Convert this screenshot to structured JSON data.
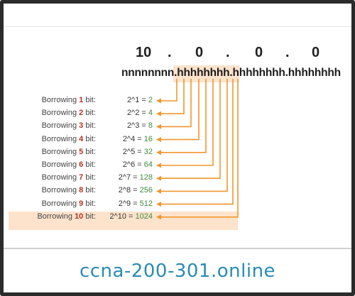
{
  "ip": {
    "octets": [
      "10",
      "0",
      "0",
      "0"
    ],
    "separator": "."
  },
  "bits": {
    "network": "nnnnnnnn",
    "dot": ".",
    "host_highlight": "hhhhhhhh.hh",
    "host_rest": "hhhhhh.hhhhhhhh"
  },
  "rows": [
    {
      "prefix": "Borrowing ",
      "n": "1",
      "suffix": " bit:",
      "expr": "2^1 = ",
      "result": "2"
    },
    {
      "prefix": "Borrowing ",
      "n": "2",
      "suffix": " bit:",
      "expr": "2^2 = ",
      "result": "4"
    },
    {
      "prefix": "Borrowing ",
      "n": "3",
      "suffix": " bit:",
      "expr": "2^3 = ",
      "result": "8"
    },
    {
      "prefix": "Borrowing ",
      "n": "4",
      "suffix": " bit:",
      "expr": "2^4 = ",
      "result": "16"
    },
    {
      "prefix": "Borrowing ",
      "n": "5",
      "suffix": " bit:",
      "expr": "2^5 = ",
      "result": "32"
    },
    {
      "prefix": "Borrowing ",
      "n": "6",
      "suffix": " bit:",
      "expr": "2^6 = ",
      "result": "64"
    },
    {
      "prefix": "Borrowing ",
      "n": "7",
      "suffix": " bit:",
      "expr": "2^7 = ",
      "result": "128"
    },
    {
      "prefix": "Borrowing ",
      "n": "8",
      "suffix": " bit:",
      "expr": "2^8 = ",
      "result": "256"
    },
    {
      "prefix": "Borrowing ",
      "n": "9",
      "suffix": " bit:",
      "expr": "2^9 = ",
      "result": "512"
    },
    {
      "prefix": "Borrowing ",
      "n": "10",
      "suffix": " bit:",
      "expr": "2^10 = ",
      "result": "1024"
    }
  ],
  "branding": "ccna-200-301.online",
  "colors": {
    "arrow": "#f0962e",
    "highlight": "#fde3cc",
    "number": "#b5301f",
    "result": "#3f8a3f",
    "brand": "#2a8bb5"
  }
}
